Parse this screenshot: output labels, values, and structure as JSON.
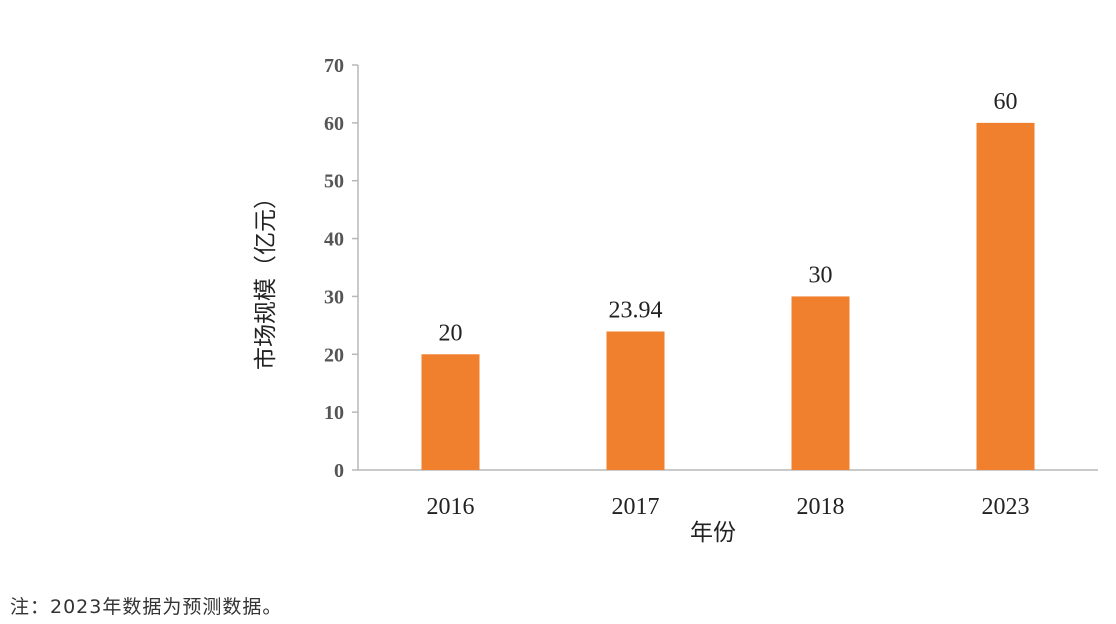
{
  "chart_data": {
    "type": "bar",
    "categories": [
      "2016",
      "2017",
      "2018",
      "2023"
    ],
    "values": [
      20,
      23.94,
      30,
      60
    ],
    "data_labels": [
      "20",
      "23.94",
      "30",
      "60"
    ],
    "xlabel": "年份",
    "ylabel": "市场规模（亿元）",
    "ylim": [
      0,
      70
    ],
    "yticks": [
      "0",
      "10",
      "20",
      "30",
      "40",
      "50",
      "60",
      "70"
    ],
    "bar_color": "#F07F2E",
    "grid": false,
    "legend": "none"
  },
  "footnote": "注：2023年数据为预测数据。"
}
